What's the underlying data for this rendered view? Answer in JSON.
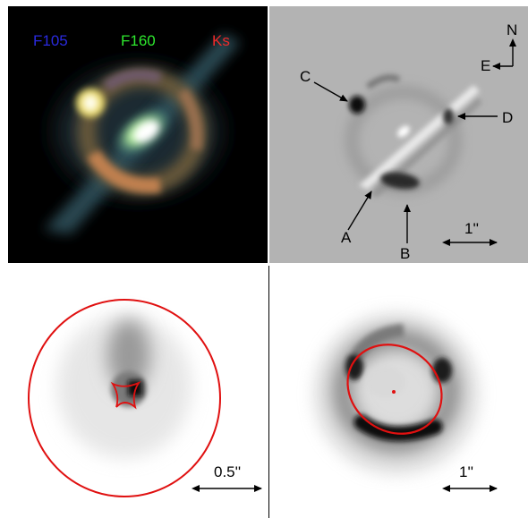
{
  "panels": {
    "color_composite": {
      "filters": [
        {
          "label": "F105",
          "color": "#2a2adf"
        },
        {
          "label": "F160",
          "color": "#2ee82e"
        },
        {
          "label": "Ks",
          "color": "#ef2a2a"
        }
      ]
    },
    "residual": {
      "images": [
        "A",
        "B",
        "C",
        "D"
      ],
      "compass": {
        "north": "N",
        "east": "E"
      },
      "scale": "1''"
    },
    "source_plane": {
      "scale": "0.5''",
      "caustic_color": "#e01010"
    },
    "image_plane": {
      "scale": "1''",
      "critical_curve_color": "#e01010"
    }
  }
}
